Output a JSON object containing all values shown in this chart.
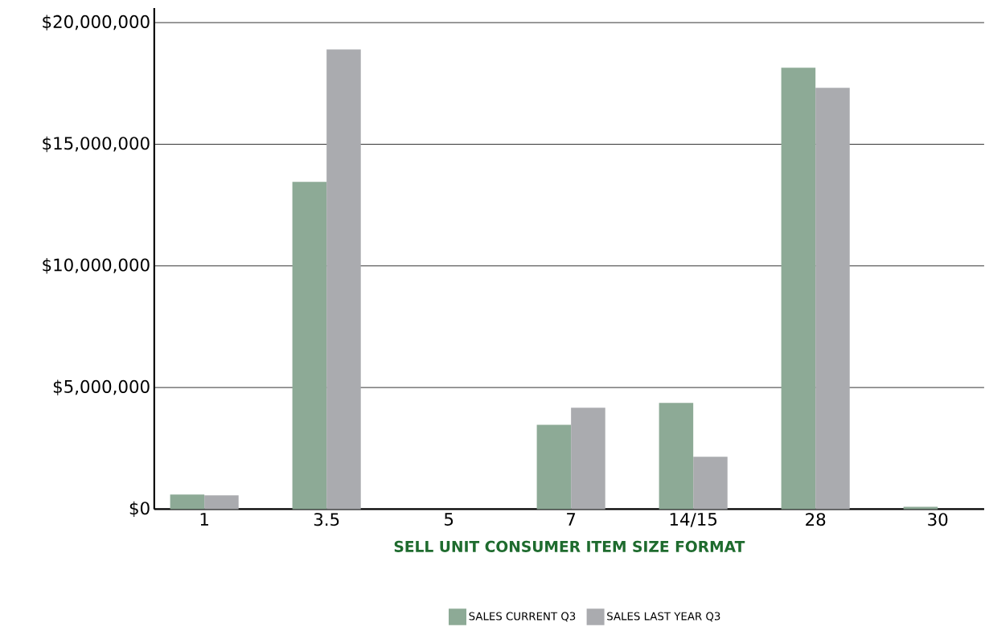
{
  "chart_data": {
    "type": "bar",
    "xlabel": "SELL UNIT CONSUMER ITEM SIZE FORMAT",
    "categories": [
      "1",
      "3.5",
      "5",
      "7",
      "14/15",
      "28",
      "30"
    ],
    "series": [
      {
        "name": "SALES CURRENT Q3",
        "color": "#8daa96",
        "values": [
          600000,
          13450000,
          0,
          3470000,
          4370000,
          18150000,
          100000
        ]
      },
      {
        "name": "SALES LAST YEAR Q3",
        "color": "#aaabaf",
        "values": [
          570000,
          18900000,
          0,
          4170000,
          2150000,
          17320000,
          0
        ]
      }
    ],
    "ylim": [
      0,
      20600000
    ],
    "yticks": [
      {
        "value": 0,
        "label": "$0"
      },
      {
        "value": 5000000,
        "label": "$5,000,000"
      },
      {
        "value": 10000000,
        "label": "$10,000,000"
      },
      {
        "value": 15000000,
        "label": "$15,000,000"
      },
      {
        "value": 20000000,
        "label": "$20,000,000"
      }
    ],
    "grid": "y",
    "legend": "bottom"
  }
}
